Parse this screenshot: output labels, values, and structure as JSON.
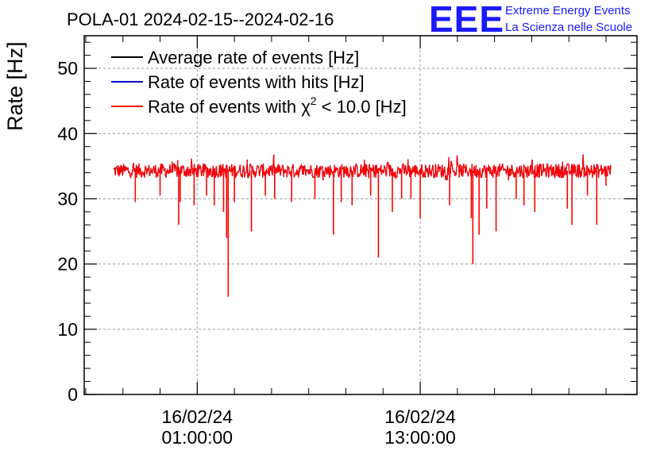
{
  "header": {
    "title": "POLA-01 2024-02-15--2024-02-16",
    "logo_text": "EEE",
    "org_line1": "Extreme Energy Events",
    "org_line2": "La Scienza nelle Scuole"
  },
  "colors": {
    "average": "#000000",
    "hits": "#0000cc",
    "chi2": "#ff0000",
    "logo": "#1a1aff",
    "grid": "#999999"
  },
  "chart_data": {
    "type": "line",
    "title": "POLA-01 2024-02-15--2024-02-16",
    "xlabel": "",
    "ylabel": "Rate [Hz]",
    "ylim": [
      0,
      55
    ],
    "xlim": [
      "2024-02-15 18:55",
      "2024-02-17 00:40"
    ],
    "yticks": [
      0,
      10,
      20,
      30,
      40,
      50
    ],
    "xticks": [
      {
        "date": "16/02/24",
        "time": "01:00:00",
        "x": "2024-02-16 01:00"
      },
      {
        "date": "16/02/24",
        "time": "13:00:00",
        "x": "2024-02-16 13:00"
      }
    ],
    "grid": true,
    "legend_position": "top-left",
    "series": [
      {
        "name": "Average rate of events [Hz]",
        "color": "#000000",
        "baseline": 34.3
      },
      {
        "name": "Rate of events with hits [Hz]",
        "color": "#0000cc",
        "baseline": 34.3
      },
      {
        "name": "Rate of events with χ² < 10.0 [Hz]",
        "legend_parts": [
          "Rate of events with χ",
          "2",
          " < 10.0 [Hz]"
        ],
        "color": "#ff0000",
        "baseline": 34.3
      }
    ],
    "x_range": [
      "2024-02-15 20:30",
      "2024-02-16 23:15"
    ],
    "band": [
      33.0,
      36.0
    ],
    "dips": [
      {
        "x": "2024-02-15 21:40",
        "y": 29.5
      },
      {
        "x": "2024-02-15 23:00",
        "y": 30.5
      },
      {
        "x": "2024-02-16 00:05",
        "y": 29.5
      },
      {
        "x": "2024-02-16 00:50",
        "y": 29.0
      },
      {
        "x": "2024-02-16 00:00",
        "y": 26.0
      },
      {
        "x": "2024-02-16 01:30",
        "y": 30.5
      },
      {
        "x": "2024-02-16 01:55",
        "y": 29.0
      },
      {
        "x": "2024-02-16 02:25",
        "y": 28.0
      },
      {
        "x": "2024-02-16 02:35",
        "y": 24.0
      },
      {
        "x": "2024-02-16 02:40",
        "y": 15.0
      },
      {
        "x": "2024-02-16 03:00",
        "y": 29.5
      },
      {
        "x": "2024-02-16 03:55",
        "y": 25.0
      },
      {
        "x": "2024-02-16 04:40",
        "y": 30.5
      },
      {
        "x": "2024-02-16 05:10",
        "y": 30.0
      },
      {
        "x": "2024-02-16 06:05",
        "y": 29.5
      },
      {
        "x": "2024-02-16 07:20",
        "y": 30.0
      },
      {
        "x": "2024-02-16 08:20",
        "y": 24.5
      },
      {
        "x": "2024-02-16 08:45",
        "y": 29.5
      },
      {
        "x": "2024-02-16 09:20",
        "y": 29.0
      },
      {
        "x": "2024-02-16 10:20",
        "y": 30.5
      },
      {
        "x": "2024-02-16 10:45",
        "y": 21.0
      },
      {
        "x": "2024-02-16 11:30",
        "y": 28.0
      },
      {
        "x": "2024-02-16 12:00",
        "y": 30.0
      },
      {
        "x": "2024-02-16 12:30",
        "y": 30.0
      },
      {
        "x": "2024-02-16 13:00",
        "y": 27.0
      },
      {
        "x": "2024-02-16 14:35",
        "y": 29.0
      },
      {
        "x": "2024-02-16 15:45",
        "y": 27.0
      },
      {
        "x": "2024-02-16 15:50",
        "y": 20.0
      },
      {
        "x": "2024-02-16 16:10",
        "y": 24.5
      },
      {
        "x": "2024-02-16 16:35",
        "y": 28.5
      },
      {
        "x": "2024-02-16 17:05",
        "y": 25.0
      },
      {
        "x": "2024-02-16 18:10",
        "y": 30.0
      },
      {
        "x": "2024-02-16 18:35",
        "y": 29.0
      },
      {
        "x": "2024-02-16 19:10",
        "y": 28.0
      },
      {
        "x": "2024-02-16 20:55",
        "y": 28.5
      },
      {
        "x": "2024-02-16 21:10",
        "y": 26.0
      },
      {
        "x": "2024-02-16 22:00",
        "y": 30.5
      },
      {
        "x": "2024-02-16 22:30",
        "y": 26.0
      },
      {
        "x": "2024-02-16 23:00",
        "y": 32.0
      }
    ]
  }
}
